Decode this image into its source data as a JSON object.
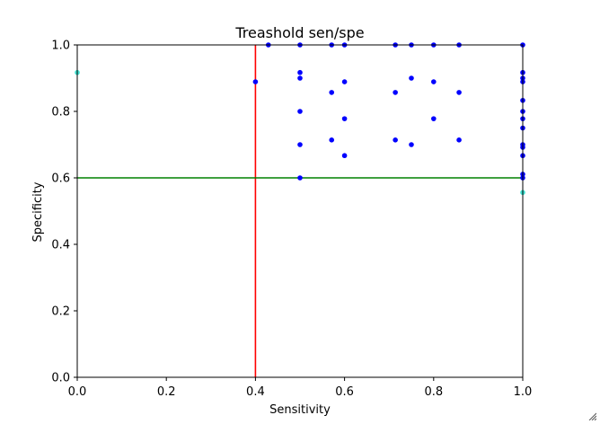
{
  "chart_data": {
    "type": "scatter",
    "title": "Treashold sen/spe",
    "xlabel": "Sensitivity",
    "ylabel": "Specificity",
    "xlim": [
      0.0,
      1.0
    ],
    "ylim": [
      0.0,
      1.0
    ],
    "xticks": [
      "0.0",
      "0.2",
      "0.4",
      "0.6",
      "0.8",
      "1.0"
    ],
    "yticks": [
      "0.0",
      "0.2",
      "0.4",
      "0.6",
      "0.8",
      "1.0"
    ],
    "grid": false,
    "colors": {
      "points": "#0000ff",
      "highlight": "#40e0d0",
      "vline": "#ff0000",
      "hline": "#008000"
    },
    "vline": 0.4,
    "hline": 0.6,
    "points": [
      [
        0.429,
        1.0
      ],
      [
        0.5,
        1.0
      ],
      [
        0.571,
        1.0
      ],
      [
        0.6,
        1.0
      ],
      [
        0.714,
        1.0
      ],
      [
        0.75,
        1.0
      ],
      [
        0.8,
        1.0
      ],
      [
        0.857,
        1.0
      ],
      [
        1.0,
        1.0
      ],
      [
        0.4,
        0.889
      ],
      [
        0.5,
        0.917
      ],
      [
        0.5,
        0.9
      ],
      [
        0.5,
        0.8
      ],
      [
        0.5,
        0.7
      ],
      [
        0.5,
        0.6
      ],
      [
        0.571,
        0.857
      ],
      [
        0.571,
        0.714
      ],
      [
        0.6,
        0.889
      ],
      [
        0.6,
        0.778
      ],
      [
        0.6,
        0.667
      ],
      [
        0.714,
        0.857
      ],
      [
        0.714,
        0.714
      ],
      [
        0.75,
        0.9
      ],
      [
        0.75,
        0.7
      ],
      [
        0.8,
        0.889
      ],
      [
        0.8,
        0.778
      ],
      [
        0.857,
        0.857
      ],
      [
        0.857,
        0.714
      ],
      [
        1.0,
        0.917
      ],
      [
        1.0,
        0.9
      ],
      [
        1.0,
        0.889
      ],
      [
        1.0,
        0.833
      ],
      [
        1.0,
        0.8
      ],
      [
        1.0,
        0.778
      ],
      [
        1.0,
        0.75
      ],
      [
        1.0,
        0.7
      ],
      [
        1.0,
        0.692
      ],
      [
        1.0,
        0.667
      ],
      [
        1.0,
        0.611
      ],
      [
        1.0,
        0.6
      ]
    ],
    "highlight_points": [
      [
        0.0,
        0.917
      ],
      [
        1.0,
        0.556
      ]
    ]
  }
}
